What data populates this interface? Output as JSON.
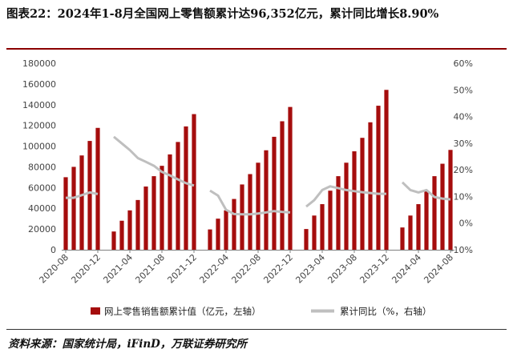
{
  "title": "图表22：2024年1-8月全国网上零售额累计达96,352亿元，累计同比增长8.90%",
  "source": "资料来源：国家统计局，iFinD，万联证券研究所",
  "chart_data": {
    "type": "bar",
    "left_axis": {
      "min": 0,
      "max": 180000,
      "step": 20000,
      "ticks": [
        "0",
        "20000",
        "40000",
        "60000",
        "80000",
        "100000",
        "120000",
        "140000",
        "160000",
        "180000"
      ]
    },
    "right_axis": {
      "min": -10,
      "max": 60,
      "step": 10,
      "ticks": [
        "-10%",
        "0%",
        "10%",
        "20%",
        "30%",
        "40%",
        "50%",
        "60%"
      ]
    },
    "x_tick_labels": [
      "2020-08",
      "2020-12",
      "2021-04",
      "2021-08",
      "2021-12",
      "2022-04",
      "2022-08",
      "2022-12",
      "2023-04",
      "2023-08",
      "2023-12",
      "2024-04",
      "2024-08"
    ],
    "x": [
      "2020-08",
      "2020-09",
      "2020-10",
      "2020-11",
      "2020-12",
      "2021-01",
      "2021-02",
      "2021-03",
      "2021-04",
      "2021-05",
      "2021-06",
      "2021-07",
      "2021-08",
      "2021-09",
      "2021-10",
      "2021-11",
      "2021-12",
      "2022-01",
      "2022-02",
      "2022-03",
      "2022-04",
      "2022-05",
      "2022-06",
      "2022-07",
      "2022-08",
      "2022-09",
      "2022-10",
      "2022-11",
      "2022-12",
      "2023-01",
      "2023-02",
      "2023-03",
      "2023-04",
      "2023-05",
      "2023-06",
      "2023-07",
      "2023-08",
      "2023-09",
      "2023-10",
      "2023-11",
      "2023-12",
      "2024-01",
      "2024-02",
      "2024-03",
      "2024-04",
      "2024-05",
      "2024-06",
      "2024-07",
      "2024-08"
    ],
    "series": [
      {
        "name": "网上零售销售额累计值（亿元，左轴）",
        "kind": "bar",
        "axis": "left",
        "color": "#a50d0d",
        "values": [
          70000,
          80000,
          91000,
          105000,
          117600,
          null,
          17600,
          28000,
          38000,
          48000,
          61000,
          71000,
          81000,
          92000,
          104000,
          119000,
          130900,
          null,
          19600,
          30000,
          38000,
          49000,
          63000,
          73000,
          84000,
          96000,
          109000,
          124000,
          137800,
          null,
          20000,
          33000,
          44000,
          57000,
          71000,
          84000,
          95000,
          108000,
          123000,
          139000,
          154300,
          null,
          21500,
          33000,
          44000,
          57000,
          71000,
          83000,
          96352
        ]
      },
      {
        "name": "累计同比（%，右轴）",
        "kind": "line",
        "axis": "right",
        "color": "#bfbfbf",
        "values": [
          9.5,
          9.5,
          10.5,
          11.5,
          10.9,
          null,
          32.4,
          29.9,
          27.4,
          24.4,
          23.0,
          21.5,
          19.2,
          17.9,
          16.4,
          15.0,
          14.1,
          null,
          12.2,
          10.3,
          5.0,
          3.4,
          3.3,
          3.3,
          3.6,
          4.0,
          4.5,
          4.2,
          4.0,
          null,
          6.2,
          8.6,
          12.4,
          13.8,
          13.1,
          12.4,
          12.0,
          11.6,
          11.3,
          11.0,
          11.0,
          null,
          15.3,
          12.4,
          11.5,
          12.4,
          9.8,
          9.2,
          8.9
        ]
      }
    ],
    "legend_position": "bottom",
    "grid": false
  }
}
